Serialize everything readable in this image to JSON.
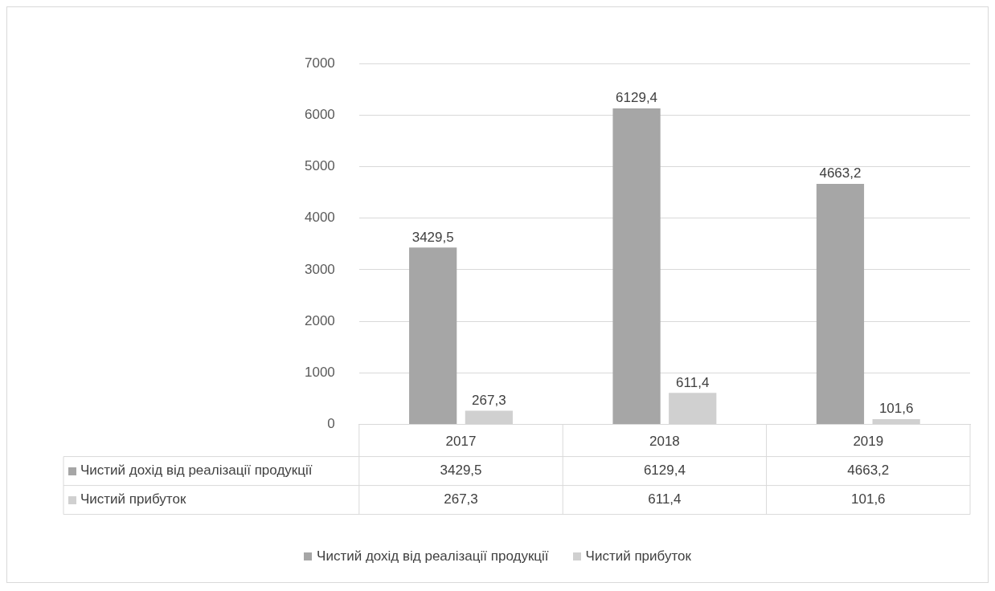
{
  "chart_data": {
    "type": "bar",
    "categories": [
      "2017",
      "2018",
      "2019"
    ],
    "series": [
      {
        "name": "Чистий дохід від реалізації продукції",
        "color": "#a6a6a6",
        "values": [
          3429.5,
          6129.4,
          4663.2
        ],
        "value_labels": [
          "3429,5",
          "6129,4",
          "4663,2"
        ]
      },
      {
        "name": "Чистий прибуток",
        "color": "#d0d0d0",
        "values": [
          267.3,
          611.4,
          101.6
        ],
        "value_labels": [
          "267,3",
          "611,4",
          "101,6"
        ]
      }
    ],
    "ylim": [
      0,
      7000
    ],
    "yticks": [
      0,
      1000,
      2000,
      3000,
      4000,
      5000,
      6000,
      7000
    ],
    "grid": "y",
    "legend": "bottom"
  }
}
